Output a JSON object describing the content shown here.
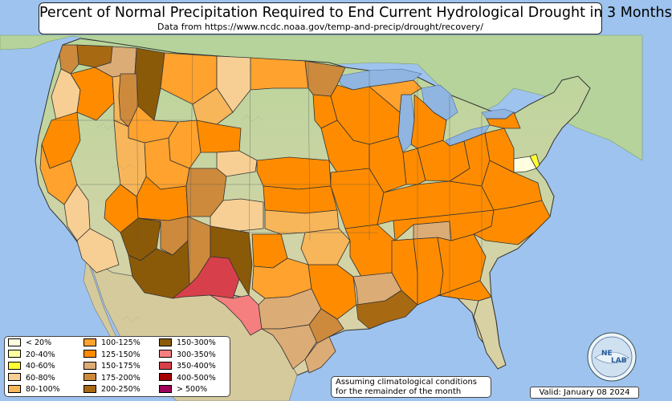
{
  "title": "Percent of Normal Precipitation Required to End Current Hydrological Drought in 3 Months",
  "subtitle": "Data from https://www.ncdc.noaa.gov/temp-and-precip/drought/recovery/",
  "note": [
    "Assuming climatological conditions",
    "for the remainder of the month"
  ],
  "valid": "Valid: January 08 2024",
  "logo_text": [
    "NE",
    "LAB"
  ],
  "colors": {
    "ocean": "#9ec3ee",
    "land_north": "#bcd49a",
    "land_south": "#d9d0a8",
    "mexico": "#d3c89a",
    "lakes": "#8fb5e0"
  },
  "legend": [
    {
      "label": "< 20%",
      "color": "#ffffe0"
    },
    {
      "label": "20-40%",
      "color": "#ffffa0"
    },
    {
      "label": "40-60%",
      "color": "#ffff33"
    },
    {
      "label": "60-80%",
      "color": "#f7cf94"
    },
    {
      "label": "80-100%",
      "color": "#f7b65a"
    },
    {
      "label": "100-125%",
      "color": "#ffa22e"
    },
    {
      "label": "125-150%",
      "color": "#ff8c00"
    },
    {
      "label": "150-175%",
      "color": "#dcac76"
    },
    {
      "label": "175-200%",
      "color": "#cd8a3c"
    },
    {
      "label": "200-250%",
      "color": "#a86913"
    },
    {
      "label": "150-300%",
      "color": "#8b5a08"
    },
    {
      "label": "300-350%",
      "color": "#f57f7f"
    },
    {
      "label": "350-400%",
      "color": "#d7404a"
    },
    {
      "label": "400-500%",
      "color": "#a50000"
    },
    {
      "label": "> 500%",
      "color": "#a0005a"
    }
  ],
  "regions": [
    {
      "name": "washington-olympic",
      "cat": 8
    },
    {
      "name": "washington-puget",
      "cat": 9
    },
    {
      "name": "washington-east",
      "cat": 7
    },
    {
      "name": "oregon-west",
      "cat": 3
    },
    {
      "name": "oregon-central",
      "cat": 6
    },
    {
      "name": "oregon-east",
      "cat": 4
    },
    {
      "name": "california-north-coast",
      "cat": 6
    },
    {
      "name": "california-sacramento",
      "cat": 5
    },
    {
      "name": "california-san-joaquin",
      "cat": 3
    },
    {
      "name": "california-south",
      "cat": 3
    },
    {
      "name": "idaho-north",
      "cat": 10
    },
    {
      "name": "idaho-central",
      "cat": 8
    },
    {
      "name": "idaho-south",
      "cat": 5
    },
    {
      "name": "montana-west",
      "cat": 5
    },
    {
      "name": "montana-central",
      "cat": 3
    },
    {
      "name": "montana-east",
      "cat": 4
    },
    {
      "name": "north-dakota-east",
      "cat": 5
    },
    {
      "name": "minnesota-north",
      "cat": 8
    },
    {
      "name": "minnesota-south",
      "cat": 6
    },
    {
      "name": "wisconsin",
      "cat": 6
    },
    {
      "name": "michigan-upper",
      "cat": 5
    },
    {
      "name": "michigan-lower",
      "cat": 6
    },
    {
      "name": "wyoming-west",
      "cat": 5
    },
    {
      "name": "wyoming-central",
      "cat": 6
    },
    {
      "name": "wyoming-south",
      "cat": 3
    },
    {
      "name": "utah-north",
      "cat": 5
    },
    {
      "name": "utah-south",
      "cat": 6
    },
    {
      "name": "colorado-west",
      "cat": 8
    },
    {
      "name": "colorado-south",
      "cat": 3
    },
    {
      "name": "nevada-east",
      "cat": 4
    },
    {
      "name": "nevada-south",
      "cat": 6
    },
    {
      "name": "arizona-northwest",
      "cat": 10
    },
    {
      "name": "arizona-north",
      "cat": 8
    },
    {
      "name": "arizona-south",
      "cat": 10
    },
    {
      "name": "new-mexico-west",
      "cat": 8
    },
    {
      "name": "new-mexico-central",
      "cat": 12
    },
    {
      "name": "new-mexico-east",
      "cat": 10
    },
    {
      "name": "texas-trans-pecos",
      "cat": 11
    },
    {
      "name": "texas-panhandle",
      "cat": 6
    },
    {
      "name": "texas-west",
      "cat": 5
    },
    {
      "name": "texas-central",
      "cat": 7
    },
    {
      "name": "texas-east",
      "cat": 6
    },
    {
      "name": "texas-south",
      "cat": 7
    },
    {
      "name": "texas-southeast",
      "cat": 8
    },
    {
      "name": "texas-coastal",
      "cat": 7
    },
    {
      "name": "nebraska-east",
      "cat": 6
    },
    {
      "name": "kansas-east",
      "cat": 6
    },
    {
      "name": "kansas-south",
      "cat": 4
    },
    {
      "name": "oklahoma-northeast",
      "cat": 4
    },
    {
      "name": "iowa",
      "cat": 6
    },
    {
      "name": "missouri",
      "cat": 6
    },
    {
      "name": "arkansas",
      "cat": 6
    },
    {
      "name": "louisiana-north",
      "cat": 7
    },
    {
      "name": "louisiana-south",
      "cat": 9
    },
    {
      "name": "mississippi",
      "cat": 6
    },
    {
      "name": "alabama",
      "cat": 6
    },
    {
      "name": "alabama-north",
      "cat": 7
    },
    {
      "name": "georgia",
      "cat": 6
    },
    {
      "name": "florida-panhandle",
      "cat": 6
    },
    {
      "name": "tennessee",
      "cat": 6
    },
    {
      "name": "kentucky",
      "cat": 6
    },
    {
      "name": "illinois",
      "cat": 6
    },
    {
      "name": "indiana",
      "cat": 6
    },
    {
      "name": "ohio",
      "cat": 6
    },
    {
      "name": "west-virginia",
      "cat": 6
    },
    {
      "name": "virginia",
      "cat": 6
    },
    {
      "name": "north-carolina-east",
      "cat": 6
    },
    {
      "name": "pennsylvania-west",
      "cat": 6
    },
    {
      "name": "new-york-west",
      "cat": 6
    },
    {
      "name": "maryland",
      "cat": 0
    },
    {
      "name": "delaware",
      "cat": 2
    }
  ]
}
